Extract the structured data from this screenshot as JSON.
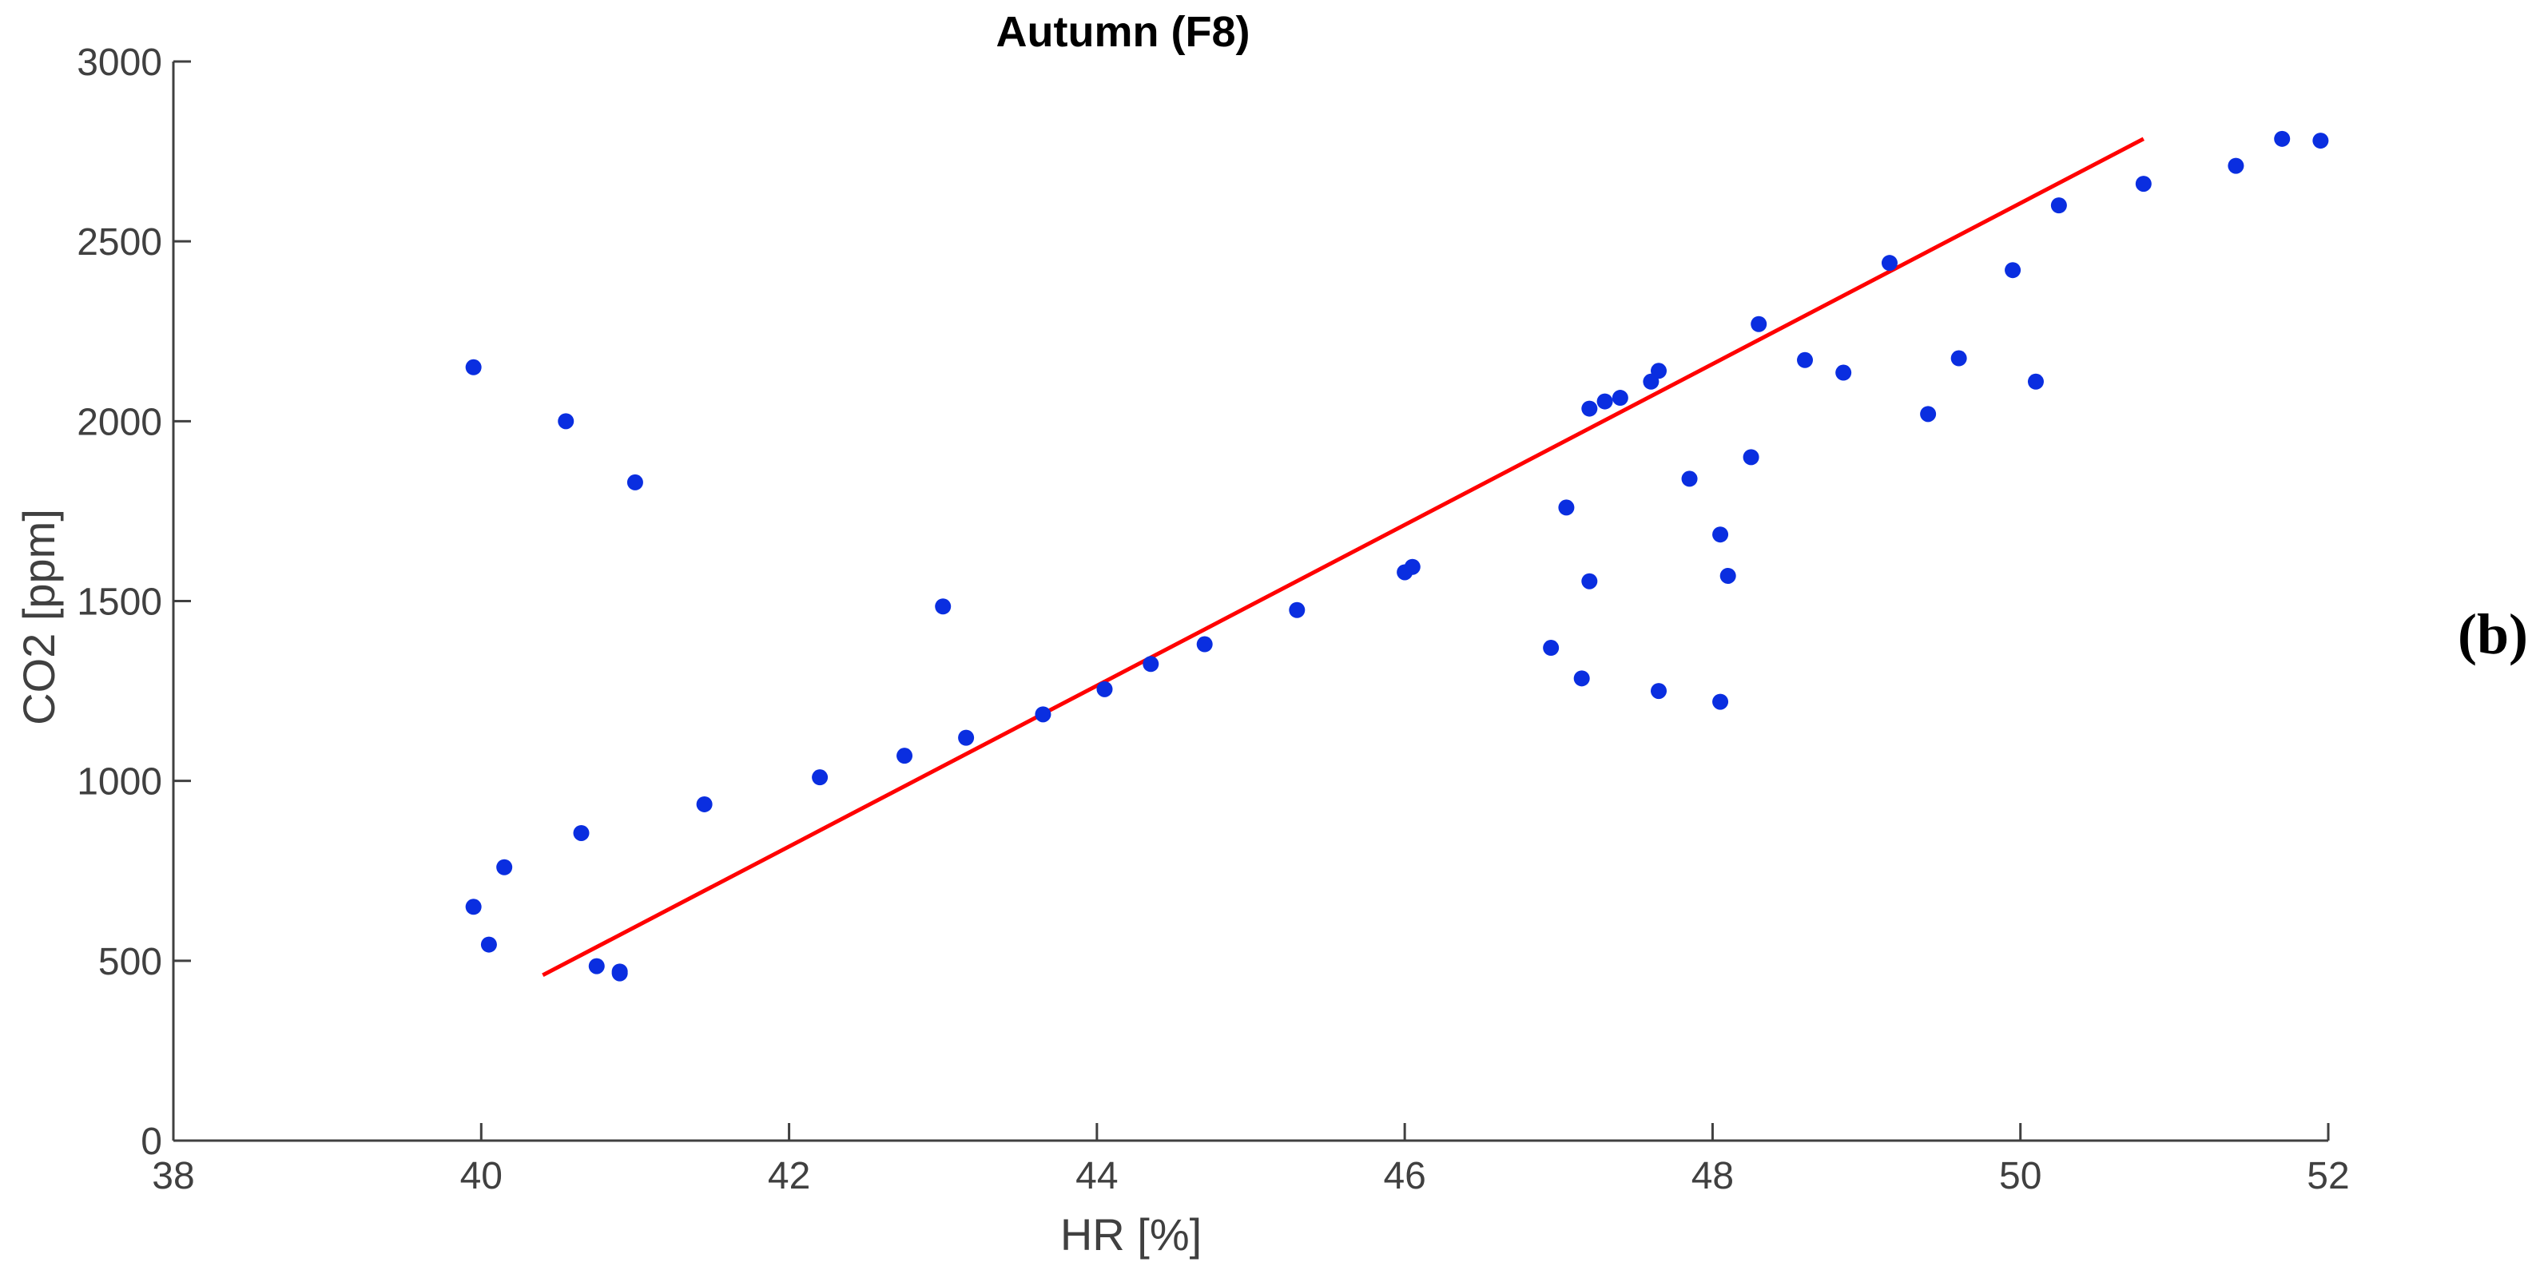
{
  "panel_label": "(b)",
  "colors": {
    "points": "#0a2ee0",
    "fit_line": "#ff0000",
    "axis": "#404040"
  },
  "chart_data": {
    "type": "scatter",
    "title": "Autumn (F8)",
    "xlabel": "HR [%]",
    "ylabel": "CO2 [ppm]",
    "xlim": [
      38,
      52
    ],
    "ylim": [
      0,
      3000
    ],
    "xticks": [
      38,
      40,
      42,
      44,
      46,
      48,
      50,
      52
    ],
    "yticks": [
      0,
      500,
      1000,
      1500,
      2000,
      2500,
      3000
    ],
    "grid": false,
    "series": [
      {
        "points": [
          [
            39.95,
            2150
          ],
          [
            39.95,
            650
          ],
          [
            40.05,
            545
          ],
          [
            40.15,
            760
          ],
          [
            40.55,
            2000
          ],
          [
            40.65,
            855
          ],
          [
            40.75,
            485
          ],
          [
            40.9,
            465
          ],
          [
            40.9,
            470
          ],
          [
            41.0,
            1830
          ],
          [
            41.45,
            935
          ],
          [
            42.2,
            1010
          ],
          [
            42.75,
            1070
          ],
          [
            43.0,
            1485
          ],
          [
            43.15,
            1120
          ],
          [
            43.65,
            1185
          ],
          [
            44.05,
            1255
          ],
          [
            44.35,
            1325
          ],
          [
            44.7,
            1380
          ],
          [
            45.3,
            1475
          ],
          [
            46.0,
            1580
          ],
          [
            46.05,
            1595
          ],
          [
            46.95,
            1370
          ],
          [
            47.05,
            1760
          ],
          [
            47.15,
            1285
          ],
          [
            47.2,
            2035
          ],
          [
            47.2,
            1555
          ],
          [
            47.3,
            2055
          ],
          [
            47.4,
            2065
          ],
          [
            47.6,
            2110
          ],
          [
            47.65,
            2140
          ],
          [
            47.65,
            1250
          ],
          [
            47.85,
            1840
          ],
          [
            48.05,
            1685
          ],
          [
            48.05,
            1220
          ],
          [
            48.1,
            1570
          ],
          [
            48.25,
            1900
          ],
          [
            48.3,
            2270
          ],
          [
            48.6,
            2170
          ],
          [
            48.85,
            2135
          ],
          [
            49.15,
            2440
          ],
          [
            49.4,
            2020
          ],
          [
            49.6,
            2175
          ],
          [
            49.95,
            2420
          ],
          [
            50.1,
            2110
          ],
          [
            50.25,
            2600
          ],
          [
            50.8,
            2660
          ],
          [
            51.4,
            2710
          ],
          [
            51.7,
            2785
          ],
          [
            51.95,
            2780
          ]
        ]
      },
      {
        "type": "line",
        "points": [
          [
            40.4,
            460
          ],
          [
            50.8,
            2785
          ]
        ]
      }
    ]
  }
}
